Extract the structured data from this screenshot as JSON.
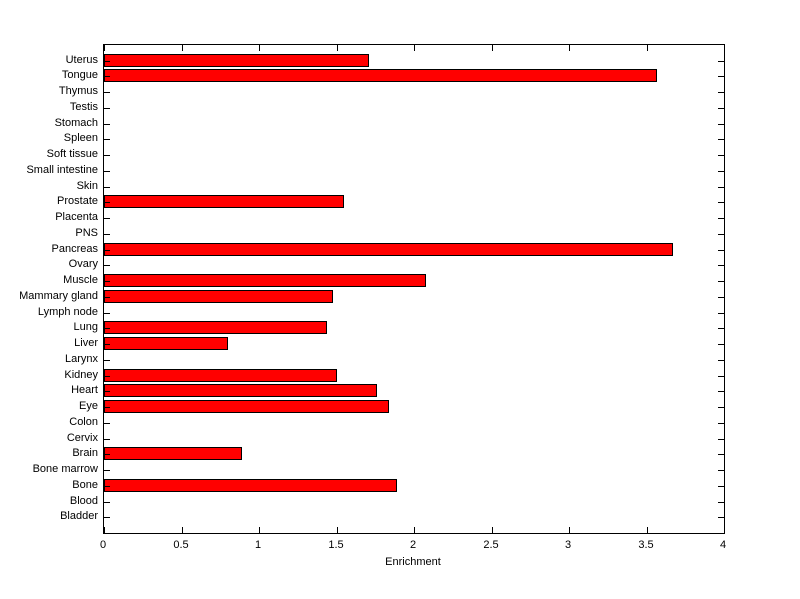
{
  "chart_data": {
    "type": "bar",
    "orientation": "horizontal",
    "title": "",
    "xlabel": "Enrichment",
    "ylabel": "",
    "xlim": [
      0,
      4
    ],
    "xticks": [
      0,
      0.5,
      1,
      1.5,
      2,
      2.5,
      3,
      3.5,
      4
    ],
    "grid": false,
    "legend": null,
    "bar_color": "#ff0000",
    "bar_edge_color": "#000000",
    "background_color": "#ffffff",
    "categories_top_to_bottom": [
      "Uterus",
      "Tongue",
      "Thymus",
      "Testis",
      "Stomach",
      "Spleen",
      "Soft tissue",
      "Small intestine",
      "Skin",
      "Prostate",
      "Placenta",
      "PNS",
      "Pancreas",
      "Ovary",
      "Muscle",
      "Mammary gland",
      "Lymph node",
      "Lung",
      "Liver",
      "Larynx",
      "Kidney",
      "Heart",
      "Eye",
      "Colon",
      "Cervix",
      "Brain",
      "Bone marrow",
      "Bone",
      "Blood",
      "Bladder"
    ],
    "values": [
      1.71,
      3.57,
      0,
      0,
      0,
      0,
      0,
      0,
      0,
      1.55,
      0,
      0,
      3.67,
      0,
      2.08,
      1.48,
      0,
      1.44,
      0.8,
      0,
      1.5,
      1.76,
      1.84,
      0,
      0,
      0.89,
      0,
      1.89,
      0,
      0
    ]
  }
}
